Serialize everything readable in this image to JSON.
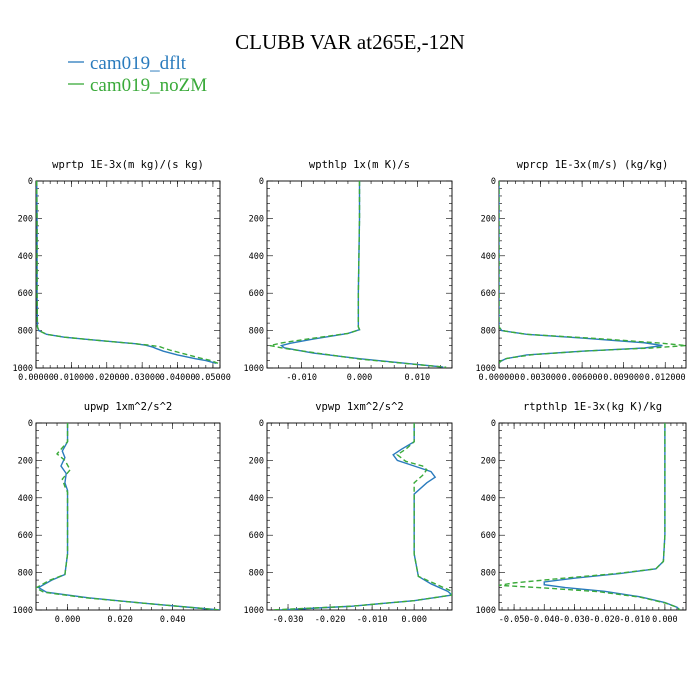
{
  "title": "CLUBB VAR at265E,-12N",
  "legend": [
    {
      "name": "cam019_dflt",
      "color": "#2a7bbd",
      "dash": "none"
    },
    {
      "name": "cam019_noZM",
      "color": "#3aaa3a",
      "dash": "5,3"
    }
  ],
  "chart_data": [
    {
      "type": "line",
      "title": "wprtp  1E-3x(m kg)/(s kg)",
      "xlim": [
        0,
        0.052
      ],
      "ylim": [
        1000,
        0
      ],
      "xticks": [
        0.0,
        0.01,
        0.02,
        0.03,
        0.04,
        0.05
      ],
      "xtick_labels": [
        "0.00000",
        "0.01000",
        "0.02000",
        "0.03000",
        "0.04000",
        "0.05000"
      ],
      "yticks": [
        0,
        200,
        400,
        600,
        800,
        1000
      ],
      "series": [
        {
          "name": "cam019_dflt",
          "x": [
            0.0002,
            0.0003,
            0.0003,
            0.0003,
            0.0004,
            0.0008,
            0.003,
            0.008,
            0.015,
            0.022,
            0.028,
            0.031,
            0.033,
            0.034,
            0.036,
            0.04,
            0.045,
            0.048,
            0.05,
            0.051
          ],
          "y": [
            0,
            200,
            400,
            600,
            780,
            800,
            820,
            835,
            848,
            860,
            870,
            878,
            888,
            896,
            910,
            930,
            950,
            960,
            970,
            975
          ]
        },
        {
          "name": "cam019_noZM",
          "x": [
            0.0002,
            0.0003,
            0.0003,
            0.0003,
            0.0004,
            0.0008,
            0.003,
            0.008,
            0.015,
            0.022,
            0.028,
            0.032,
            0.035,
            0.036,
            0.038,
            0.042,
            0.046,
            0.049,
            0.0505,
            0.0515
          ],
          "y": [
            0,
            200,
            400,
            600,
            780,
            800,
            820,
            835,
            848,
            860,
            870,
            878,
            886,
            893,
            905,
            925,
            945,
            958,
            968,
            975
          ]
        }
      ]
    },
    {
      "type": "line",
      "title": "wpthlp  1x(m K)/s",
      "xlim": [
        -0.016,
        0.016
      ],
      "ylim": [
        1000,
        0
      ],
      "xticks": [
        -0.01,
        0.0,
        0.01
      ],
      "xtick_labels": [
        "-0.010",
        "0.000",
        "0.010"
      ],
      "yticks": [
        0,
        200,
        400,
        600,
        800,
        1000
      ],
      "series": [
        {
          "name": "cam019_dflt",
          "x": [
            0.0,
            0.0,
            -0.0001,
            -0.0002,
            -0.0002,
            0.0,
            -0.002,
            -0.008,
            -0.012,
            -0.0135,
            -0.013,
            -0.008,
            0.0,
            0.008,
            0.0145
          ],
          "y": [
            0,
            200,
            400,
            600,
            780,
            795,
            815,
            845,
            868,
            880,
            892,
            920,
            950,
            975,
            995
          ]
        },
        {
          "name": "cam019_noZM",
          "x": [
            0.0,
            0.0,
            -0.0001,
            -0.0002,
            -0.0002,
            0.0,
            -0.002,
            -0.009,
            -0.0135,
            -0.0155,
            -0.013,
            -0.007,
            0.0,
            0.008,
            0.015
          ],
          "y": [
            0,
            200,
            400,
            600,
            780,
            795,
            815,
            845,
            866,
            880,
            895,
            922,
            952,
            976,
            996
          ]
        }
      ]
    },
    {
      "type": "line",
      "title": "wprcp  1E-3x(m/s) (kg/kg)",
      "xlim": [
        0,
        0.0135
      ],
      "ylim": [
        1000,
        0
      ],
      "xticks": [
        0.0,
        0.003,
        0.006,
        0.009,
        0.012
      ],
      "xtick_labels": [
        "0.000000",
        "0.003000",
        "0.006000",
        "0.009000",
        "0.012000"
      ],
      "yticks": [
        0,
        200,
        400,
        600,
        800,
        1000
      ],
      "series": [
        {
          "name": "cam019_dflt",
          "x": [
            0.0,
            0.0,
            0.0,
            0.0,
            0.0,
            0.0002,
            0.002,
            0.006,
            0.0105,
            0.0118,
            0.0105,
            0.006,
            0.002,
            0.0005,
            0.0001,
            0.0
          ],
          "y": [
            0,
            200,
            400,
            600,
            780,
            800,
            820,
            840,
            865,
            880,
            893,
            910,
            930,
            950,
            965,
            975
          ]
        },
        {
          "name": "cam019_noZM",
          "x": [
            0.0,
            0.0,
            0.0,
            0.0,
            0.0,
            0.0002,
            0.002,
            0.007,
            0.0115,
            0.0135,
            0.011,
            0.0065,
            0.0025,
            0.0006,
            0.0001,
            0.0
          ],
          "y": [
            0,
            200,
            400,
            600,
            780,
            800,
            820,
            842,
            866,
            880,
            893,
            908,
            928,
            948,
            963,
            975
          ]
        }
      ]
    },
    {
      "type": "line",
      "title": "upwp  1xm^2/s^2",
      "xlim": [
        -0.012,
        0.058
      ],
      "ylim": [
        1000,
        0
      ],
      "xticks": [
        0.0,
        0.02,
        0.04
      ],
      "xtick_labels": [
        "0.000",
        "0.020",
        "0.040"
      ],
      "yticks": [
        0,
        200,
        400,
        600,
        800,
        1000
      ],
      "series": [
        {
          "name": "cam019_dflt",
          "x": [
            0.0,
            0.0,
            -0.002,
            -0.001,
            -0.0025,
            -0.0005,
            -0.001,
            0.0,
            0.0,
            0.0,
            -0.001,
            -0.006,
            -0.011,
            -0.008,
            0.008,
            0.03,
            0.05,
            0.058
          ],
          "y": [
            0,
            100,
            150,
            185,
            230,
            270,
            320,
            360,
            500,
            700,
            810,
            840,
            880,
            905,
            935,
            965,
            990,
            1000
          ]
        },
        {
          "name": "cam019_noZM",
          "x": [
            0.0,
            0.0,
            -0.004,
            -0.001,
            0.001,
            -0.002,
            -0.001,
            0.0,
            0.0,
            0.0,
            -0.001,
            -0.007,
            -0.012,
            -0.009,
            0.007,
            0.03,
            0.05,
            0.058
          ],
          "y": [
            0,
            100,
            165,
            200,
            250,
            300,
            340,
            370,
            500,
            700,
            810,
            842,
            882,
            905,
            935,
            965,
            990,
            1000
          ]
        }
      ]
    },
    {
      "type": "line",
      "title": "vpwp  1xm^2/s^2",
      "xlim": [
        -0.035,
        0.009
      ],
      "ylim": [
        1000,
        0
      ],
      "xticks": [
        -0.03,
        -0.02,
        -0.01,
        0.0
      ],
      "xtick_labels": [
        "-0.030",
        "-0.020",
        "-0.010",
        "0.000"
      ],
      "yticks": [
        0,
        200,
        400,
        600,
        800,
        1000
      ],
      "series": [
        {
          "name": "cam019_dflt",
          "x": [
            0.0,
            0.0,
            -0.003,
            -0.005,
            -0.004,
            0.0,
            0.004,
            0.005,
            0.003,
            0.0,
            0.0,
            0.0,
            0.001,
            0.004,
            0.008,
            0.009,
            0.0,
            -0.015,
            -0.032
          ],
          "y": [
            0,
            100,
            140,
            170,
            200,
            230,
            260,
            290,
            320,
            380,
            500,
            700,
            820,
            860,
            900,
            920,
            950,
            980,
            1000
          ]
        },
        {
          "name": "cam019_noZM",
          "x": [
            0.0,
            0.0,
            -0.002,
            -0.004,
            -0.002,
            0.002,
            0.003,
            0.002,
            0.0,
            0.0,
            0.0,
            0.0,
            0.001,
            0.005,
            0.009,
            0.009,
            0.0,
            -0.015,
            -0.034
          ],
          "y": [
            0,
            100,
            140,
            170,
            205,
            230,
            250,
            280,
            320,
            380,
            500,
            700,
            820,
            860,
            900,
            920,
            950,
            980,
            1000
          ]
        }
      ]
    },
    {
      "type": "line",
      "title": "rtpthlp  1E-3x(kg K)/kg",
      "xlim": [
        -0.055,
        0.007
      ],
      "ylim": [
        1000,
        0
      ],
      "xticks": [
        -0.05,
        -0.04,
        -0.03,
        -0.02,
        -0.01,
        0.0
      ],
      "xtick_labels": [
        "-0.050",
        "-0.040",
        "-0.030",
        "-0.020",
        "-0.010",
        "0.000"
      ],
      "yticks": [
        0,
        200,
        400,
        600,
        800,
        1000
      ],
      "series": [
        {
          "name": "cam019_dflt",
          "x": [
            0.0,
            0.0,
            0.0,
            0.0,
            -0.0005,
            -0.003,
            -0.015,
            -0.03,
            -0.04,
            -0.04,
            -0.033,
            -0.02,
            -0.008,
            0.0,
            0.004,
            0.005
          ],
          "y": [
            0,
            200,
            400,
            600,
            740,
            780,
            805,
            830,
            850,
            865,
            880,
            900,
            930,
            960,
            985,
            1000
          ]
        },
        {
          "name": "cam019_noZM",
          "x": [
            0.0,
            0.0,
            0.0,
            0.0,
            -0.0005,
            -0.003,
            -0.016,
            -0.035,
            -0.05,
            -0.055,
            -0.04,
            -0.022,
            -0.008,
            0.0,
            0.004,
            0.005
          ],
          "y": [
            0,
            200,
            400,
            600,
            740,
            780,
            805,
            832,
            855,
            868,
            882,
            902,
            932,
            962,
            985,
            1000
          ]
        }
      ]
    }
  ]
}
